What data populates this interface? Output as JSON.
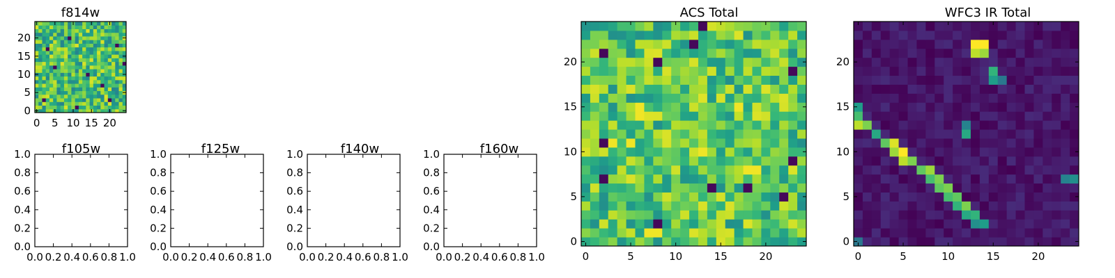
{
  "chart_data": [
    {
      "type": "heatmap",
      "title": "f814w",
      "grid_size": 25,
      "colormap": "viridis",
      "xticks": [
        "0",
        "5",
        "10",
        "15",
        "20"
      ],
      "yticks": [
        "0",
        "5",
        "10",
        "15",
        "20"
      ],
      "xlim": [
        -0.5,
        24.5
      ],
      "ylim": [
        -0.5,
        24.5
      ],
      "pattern": "noise",
      "seed": 814,
      "value_range": [
        0.45,
        0.95
      ],
      "dark_pixels": [
        [
          2,
          3
        ],
        [
          5,
          12
        ],
        [
          18,
          7
        ],
        [
          22,
          18
        ],
        [
          9,
          20
        ],
        [
          14,
          10
        ],
        [
          3,
          17
        ],
        [
          20,
          3
        ],
        [
          11,
          1
        ],
        [
          24,
          13
        ]
      ]
    },
    {
      "type": "heatmap",
      "title": "ACS Total",
      "grid_size": 25,
      "colormap": "viridis",
      "xticks": [
        "0",
        "5",
        "10",
        "15",
        "20"
      ],
      "yticks": [
        "0",
        "5",
        "10",
        "15",
        "20"
      ],
      "xlim": [
        -0.5,
        24.5
      ],
      "ylim": [
        -0.5,
        24.5
      ],
      "pattern": "noise",
      "seed": 1,
      "value_range": [
        0.5,
        0.95
      ],
      "dark_pixels": [
        [
          13,
          24
        ],
        [
          2,
          21
        ],
        [
          8,
          20
        ],
        [
          12,
          22
        ],
        [
          23,
          19
        ],
        [
          2,
          11
        ],
        [
          23,
          9
        ],
        [
          18,
          6
        ],
        [
          22,
          5
        ],
        [
          14,
          6
        ],
        [
          8,
          2
        ],
        [
          2,
          7
        ]
      ],
      "bright_pixels": [
        [
          18,
          8
        ],
        [
          19,
          8
        ],
        [
          3,
          11
        ],
        [
          5,
          11
        ],
        [
          6,
          14
        ],
        [
          6,
          15
        ],
        [
          7,
          1
        ],
        [
          8,
          1
        ],
        [
          13,
          10
        ],
        [
          17,
          15
        ]
      ]
    },
    {
      "type": "heatmap",
      "title": "WFC3 IR Total",
      "grid_size": 25,
      "colormap": "viridis",
      "xticks": [
        "0",
        "5",
        "10",
        "15",
        "20"
      ],
      "yticks": [
        "0",
        "5",
        "10",
        "15",
        "20"
      ],
      "xlim": [
        -0.5,
        24.5
      ],
      "ylim": [
        -0.5,
        24.5
      ],
      "pattern": "diagonal",
      "seed": 7,
      "value_range": [
        0.0,
        0.12
      ],
      "diagonal": [
        [
          0,
          15,
          0.55
        ],
        [
          0,
          14,
          0.7
        ],
        [
          0,
          13,
          0.9
        ],
        [
          1,
          13,
          0.8
        ],
        [
          2,
          12,
          0.6
        ],
        [
          3,
          11,
          0.75
        ],
        [
          4,
          11,
          0.95
        ],
        [
          4,
          10,
          0.85
        ],
        [
          5,
          10,
          1.0
        ],
        [
          5,
          9,
          0.9
        ],
        [
          6,
          9,
          0.8
        ],
        [
          7,
          8,
          0.75
        ],
        [
          8,
          8,
          0.85
        ],
        [
          8,
          7,
          0.7
        ],
        [
          9,
          7,
          0.8
        ],
        [
          9,
          6,
          0.75
        ],
        [
          10,
          6,
          0.8
        ],
        [
          10,
          5,
          0.7
        ],
        [
          11,
          5,
          0.75
        ],
        [
          11,
          4,
          0.65
        ],
        [
          12,
          4,
          0.8
        ],
        [
          12,
          3,
          0.6
        ],
        [
          13,
          3,
          0.65
        ],
        [
          13,
          2,
          0.5
        ],
        [
          14,
          2,
          0.55
        ],
        [
          0,
          0,
          0.4
        ]
      ],
      "spots": [
        [
          13,
          22,
          1.0
        ],
        [
          14,
          22,
          1.0
        ],
        [
          13,
          21,
          0.9
        ],
        [
          14,
          21,
          0.85
        ],
        [
          15,
          19,
          0.65
        ],
        [
          15,
          18,
          0.55
        ],
        [
          16,
          18,
          0.4
        ],
        [
          12,
          13,
          0.45
        ],
        [
          12,
          12,
          0.6
        ],
        [
          24,
          7,
          0.5
        ],
        [
          23,
          7,
          0.45
        ],
        [
          0,
          0,
          0.4
        ]
      ]
    },
    {
      "type": "table",
      "title": "f105w",
      "xticks": [
        "0.0",
        "0.2",
        "0.4",
        "0.6",
        "0.8",
        "1.0"
      ],
      "yticks": [
        "0.0",
        "0.2",
        "0.4",
        "0.6",
        "0.8",
        "1.0"
      ],
      "xlim": [
        0,
        1
      ],
      "ylim": [
        0,
        1
      ]
    },
    {
      "type": "table",
      "title": "f125w",
      "xticks": [
        "0.0",
        "0.2",
        "0.4",
        "0.6",
        "0.8",
        "1.0"
      ],
      "yticks": [
        "0.0",
        "0.2",
        "0.4",
        "0.6",
        "0.8",
        "1.0"
      ],
      "xlim": [
        0,
        1
      ],
      "ylim": [
        0,
        1
      ]
    },
    {
      "type": "table",
      "title": "f140w",
      "xticks": [
        "0.0",
        "0.2",
        "0.4",
        "0.6",
        "0.8",
        "1.0"
      ],
      "yticks": [
        "0.0",
        "0.2",
        "0.4",
        "0.6",
        "0.8",
        "1.0"
      ],
      "xlim": [
        0,
        1
      ],
      "ylim": [
        0,
        1
      ]
    },
    {
      "type": "table",
      "title": "f160w",
      "xticks": [
        "0.0",
        "0.2",
        "0.4",
        "0.6",
        "0.8",
        "1.0"
      ],
      "yticks": [
        "0.0",
        "0.2",
        "0.4",
        "0.6",
        "0.8",
        "1.0"
      ],
      "xlim": [
        0,
        1
      ],
      "ylim": [
        0,
        1
      ]
    }
  ]
}
